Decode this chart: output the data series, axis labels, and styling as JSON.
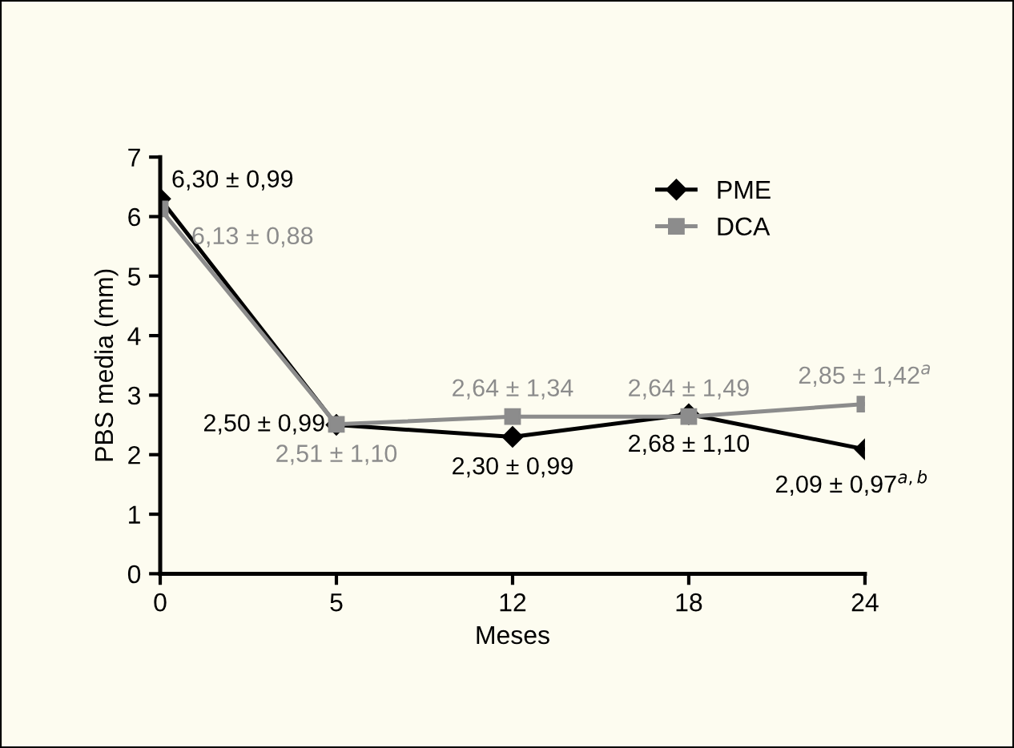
{
  "chart_data": {
    "type": "line",
    "xlabel": "Meses",
    "ylabel": "PBS media (mm)",
    "categories": [
      "0",
      "5",
      "12",
      "18",
      "24"
    ],
    "series": [
      {
        "name": "PME",
        "color": "#000000",
        "marker": "diamond",
        "values": [
          6.3,
          2.5,
          2.3,
          2.68,
          2.09
        ],
        "value_labels": [
          "6,30 ± 0,99",
          "2,50 ± 0,99",
          "2,30 ± 0,99",
          "2,68 ± 1,10",
          "2,09 ± 0,97$^{a,b}$"
        ]
      },
      {
        "name": "DCA",
        "color": "#8c8c8c",
        "marker": "square",
        "values": [
          6.13,
          2.51,
          2.64,
          2.64,
          2.85
        ],
        "value_labels": [
          "6,13 ± 0,88",
          "2,51 ± 1,10",
          "2,64 ± 1,34",
          "2,64 ± 1,49",
          "2,85 ± 1,42$^{a}$"
        ]
      }
    ],
    "ylim": [
      0,
      7
    ],
    "yticks": [
      0,
      1,
      2,
      3,
      4,
      5,
      6,
      7
    ],
    "grid": false,
    "legend": "top right",
    "line_style": "solid"
  }
}
